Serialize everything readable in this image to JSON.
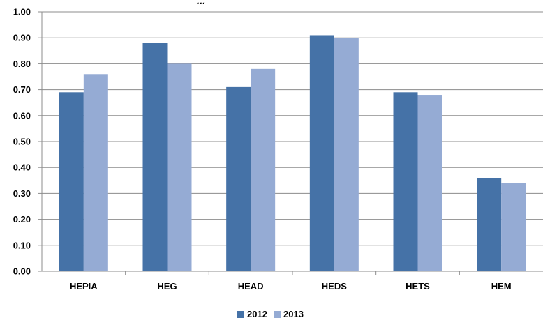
{
  "chart_data": {
    "type": "bar",
    "title": "...",
    "categories": [
      "HEPIA",
      "HEG",
      "HEAD",
      "HEDS",
      "HETS",
      "HEM"
    ],
    "series": [
      {
        "name": "2012",
        "color": "#4572A7",
        "values": [
          0.69,
          0.88,
          0.71,
          0.91,
          0.69,
          0.36
        ]
      },
      {
        "name": "2013",
        "color": "#95ABD4",
        "values": [
          0.76,
          0.8,
          0.78,
          0.9,
          0.68,
          0.34
        ]
      }
    ],
    "ylim": [
      0,
      1.0
    ],
    "yticks": [
      "0.00",
      "0.10",
      "0.20",
      "0.30",
      "0.40",
      "0.50",
      "0.60",
      "0.70",
      "0.80",
      "0.90",
      "1.00"
    ],
    "grid": true,
    "legend_position": "bottom",
    "xlabel": "",
    "ylabel": ""
  }
}
